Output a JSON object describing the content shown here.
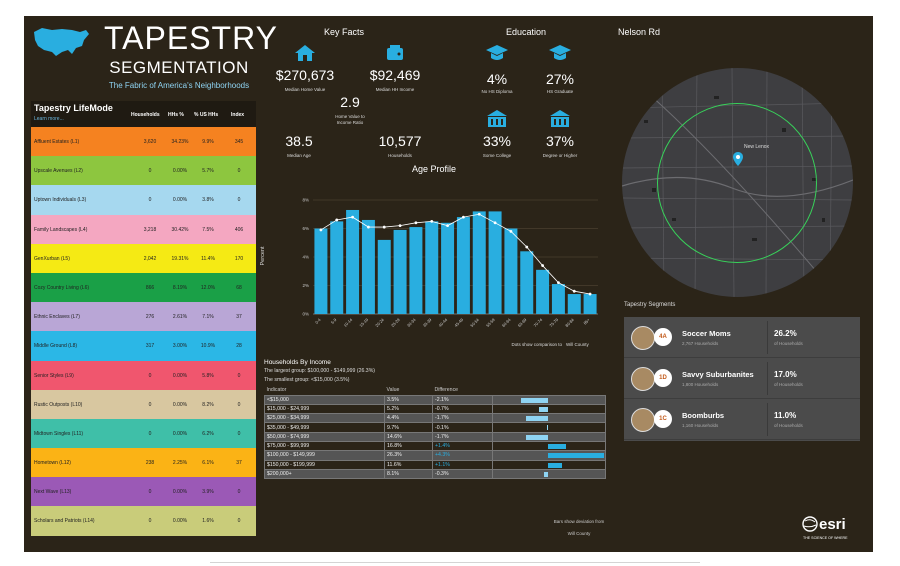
{
  "header": {
    "title_line1": "TAPESTRY",
    "title_line2": "SEGMENTATION",
    "subtitle": "The Fabric of America's Neighborhoods"
  },
  "lifemode": {
    "title": "Tapestry LifeMode",
    "subtitle": "Learn more...",
    "columns": [
      "Households",
      "HHs %",
      "% US HHs",
      "Index"
    ],
    "rows": [
      {
        "name": "Affluent Estates (L1)",
        "households": "3,620",
        "hhs_pct": "34.23%",
        "us_pct": "9.9%",
        "index": "345",
        "color": "#f58220"
      },
      {
        "name": "Upscale Avenues (L2)",
        "households": "0",
        "hhs_pct": "0.00%",
        "us_pct": "5.7%",
        "index": "0",
        "color": "#8dc63f"
      },
      {
        "name": "Uptown Individuals (L3)",
        "households": "0",
        "hhs_pct": "0.00%",
        "us_pct": "3.8%",
        "index": "0",
        "color": "#a6d8ef"
      },
      {
        "name": "Family Landscapes (L4)",
        "households": "3,218",
        "hhs_pct": "30.42%",
        "us_pct": "7.5%",
        "index": "406",
        "color": "#f4a7c1"
      },
      {
        "name": "GenXurban (L5)",
        "households": "2,042",
        "hhs_pct": "19.31%",
        "us_pct": "11.4%",
        "index": "170",
        "color": "#f5ea14"
      },
      {
        "name": "Cozy Country Living (L6)",
        "households": "866",
        "hhs_pct": "8.19%",
        "us_pct": "12.0%",
        "index": "68",
        "color": "#1aa047"
      },
      {
        "name": "Ethnic Enclaves (L7)",
        "households": "276",
        "hhs_pct": "2.61%",
        "us_pct": "7.1%",
        "index": "37",
        "color": "#b9a6d6"
      },
      {
        "name": "Middle Ground (L8)",
        "households": "317",
        "hhs_pct": "3.00%",
        "us_pct": "10.9%",
        "index": "28",
        "color": "#2bb7e6"
      },
      {
        "name": "Senior Styles (L9)",
        "households": "0",
        "hhs_pct": "0.00%",
        "us_pct": "5.8%",
        "index": "0",
        "color": "#f0566e"
      },
      {
        "name": "Rustic Outposts (L10)",
        "households": "0",
        "hhs_pct": "0.00%",
        "us_pct": "8.2%",
        "index": "0",
        "color": "#d8c7a0"
      },
      {
        "name": "Midtown Singles (L11)",
        "households": "0",
        "hhs_pct": "0.00%",
        "us_pct": "6.2%",
        "index": "0",
        "color": "#3fbfa8"
      },
      {
        "name": "Hometown (L12)",
        "households": "238",
        "hhs_pct": "2.25%",
        "us_pct": "6.1%",
        "index": "37",
        "color": "#fbb315"
      },
      {
        "name": "Next Wave (L13)",
        "households": "0",
        "hhs_pct": "0.00%",
        "us_pct": "3.9%",
        "index": "0",
        "color": "#9b59b6"
      },
      {
        "name": "Scholars and Patriots (L14)",
        "households": "0",
        "hhs_pct": "0.00%",
        "us_pct": "1.6%",
        "index": "0",
        "color": "#c9cc7a"
      }
    ]
  },
  "key_facts": {
    "title": "Key Facts",
    "median_home_value": "$270,673",
    "median_home_value_label": "Median Home Value",
    "median_hh_income": "$92,469",
    "median_hh_income_label": "Median HH Income",
    "home_to_income": "2.9",
    "home_to_income_label_1": "Home Value to",
    "home_to_income_label_2": "Income Ratio",
    "median_age": "38.5",
    "median_age_label": "Median Age",
    "households": "10,577",
    "households_label": "Households"
  },
  "education": {
    "title": "Education",
    "items": [
      {
        "value": "4%",
        "label": "No HS Diploma"
      },
      {
        "value": "27%",
        "label": "HS Graduate"
      },
      {
        "value": "33%",
        "label": "Some College"
      },
      {
        "value": "37%",
        "label": "Degree or Higher"
      }
    ]
  },
  "map": {
    "title": "Nelson Rd",
    "place_label": "New Lenox"
  },
  "age_profile": {
    "title": "Age Profile",
    "note": "Dots show comparison to",
    "note_place": "Will County"
  },
  "chart_data": {
    "type": "bar",
    "title": "Age Profile",
    "ylabel": "Percent",
    "ylim": [
      0,
      8
    ],
    "yticks": [
      "0%",
      "2%",
      "4%",
      "6%",
      "8%"
    ],
    "categories": [
      "0-4",
      "5-9",
      "10-14",
      "15-19",
      "20-24",
      "25-29",
      "30-34",
      "35-39",
      "40-44",
      "45-49",
      "50-54",
      "55-59",
      "60-64",
      "65-69",
      "70-74",
      "75-79",
      "80-84",
      "85+"
    ],
    "series": [
      {
        "values": [
          6.0,
          6.5,
          7.3,
          6.6,
          5.2,
          5.9,
          6.1,
          6.5,
          6.4,
          6.8,
          7.2,
          7.2,
          6.0,
          4.4,
          3.1,
          2.1,
          1.4,
          1.4
        ]
      },
      {
        "values": [
          5.9,
          6.6,
          6.8,
          6.1,
          6.1,
          6.2,
          6.4,
          6.5,
          6.2,
          6.8,
          7.0,
          6.4,
          5.8,
          4.7,
          3.4,
          2.2,
          1.6,
          1.4
        ]
      }
    ]
  },
  "income": {
    "title": "Households By Income",
    "largest": "The largest group: $100,000 - $149,999 (26.3%)",
    "smallest": "The smallest group: <$15,000 (3.5%)",
    "headers": [
      "Indicator",
      "Value",
      "Difference"
    ],
    "rows": [
      {
        "indicator": "<$15,000",
        "value": "3.5%",
        "diff": "-2.1%",
        "d": -2.1
      },
      {
        "indicator": "$15,000 - $24,999",
        "value": "5.2%",
        "diff": "-0.7%",
        "d": -0.7
      },
      {
        "indicator": "$25,000 - $34,999",
        "value": "4.4%",
        "diff": "-1.7%",
        "d": -1.7
      },
      {
        "indicator": "$35,000 - $49,999",
        "value": "9.7%",
        "diff": "-0.1%",
        "d": -0.1
      },
      {
        "indicator": "$50,000 - $74,999",
        "value": "14.6%",
        "diff": "-1.7%",
        "d": -1.7
      },
      {
        "indicator": "$75,000 - $99,999",
        "value": "16.8%",
        "diff": "+1.4%",
        "d": 1.4
      },
      {
        "indicator": "$100,000 - $149,999",
        "value": "26.3%",
        "diff": "+4.3%",
        "d": 4.3
      },
      {
        "indicator": "$150,000 - $199,999",
        "value": "11.6%",
        "diff": "+1.1%",
        "d": 1.1
      },
      {
        "indicator": "$200,000+",
        "value": "8.1%",
        "diff": "-0.3%",
        "d": -0.3
      }
    ],
    "note_1": "Bars show deviation from",
    "note_2": "Will County"
  },
  "segments": {
    "title": "Tapestry Segments",
    "items": [
      {
        "code": "4A",
        "name": "Soccer Moms",
        "households": "2,767 Households",
        "pct": "26.2%",
        "pct_label": "of Households"
      },
      {
        "code": "1D",
        "name": "Savvy Suburbanites",
        "households": "1,800 Households",
        "pct": "17.0%",
        "pct_label": "of Households"
      },
      {
        "code": "1C",
        "name": "Boomburbs",
        "households": "1,160 Households",
        "pct": "11.0%",
        "pct_label": "of Households"
      }
    ]
  },
  "brand": {
    "name": "esri",
    "tagline": "THE SCIENCE OF WHERE"
  },
  "colors": {
    "panel": "#2b2418",
    "accent_blue": "#29aee0",
    "dots": "#ffffff",
    "map_ring": "#38d15a"
  }
}
